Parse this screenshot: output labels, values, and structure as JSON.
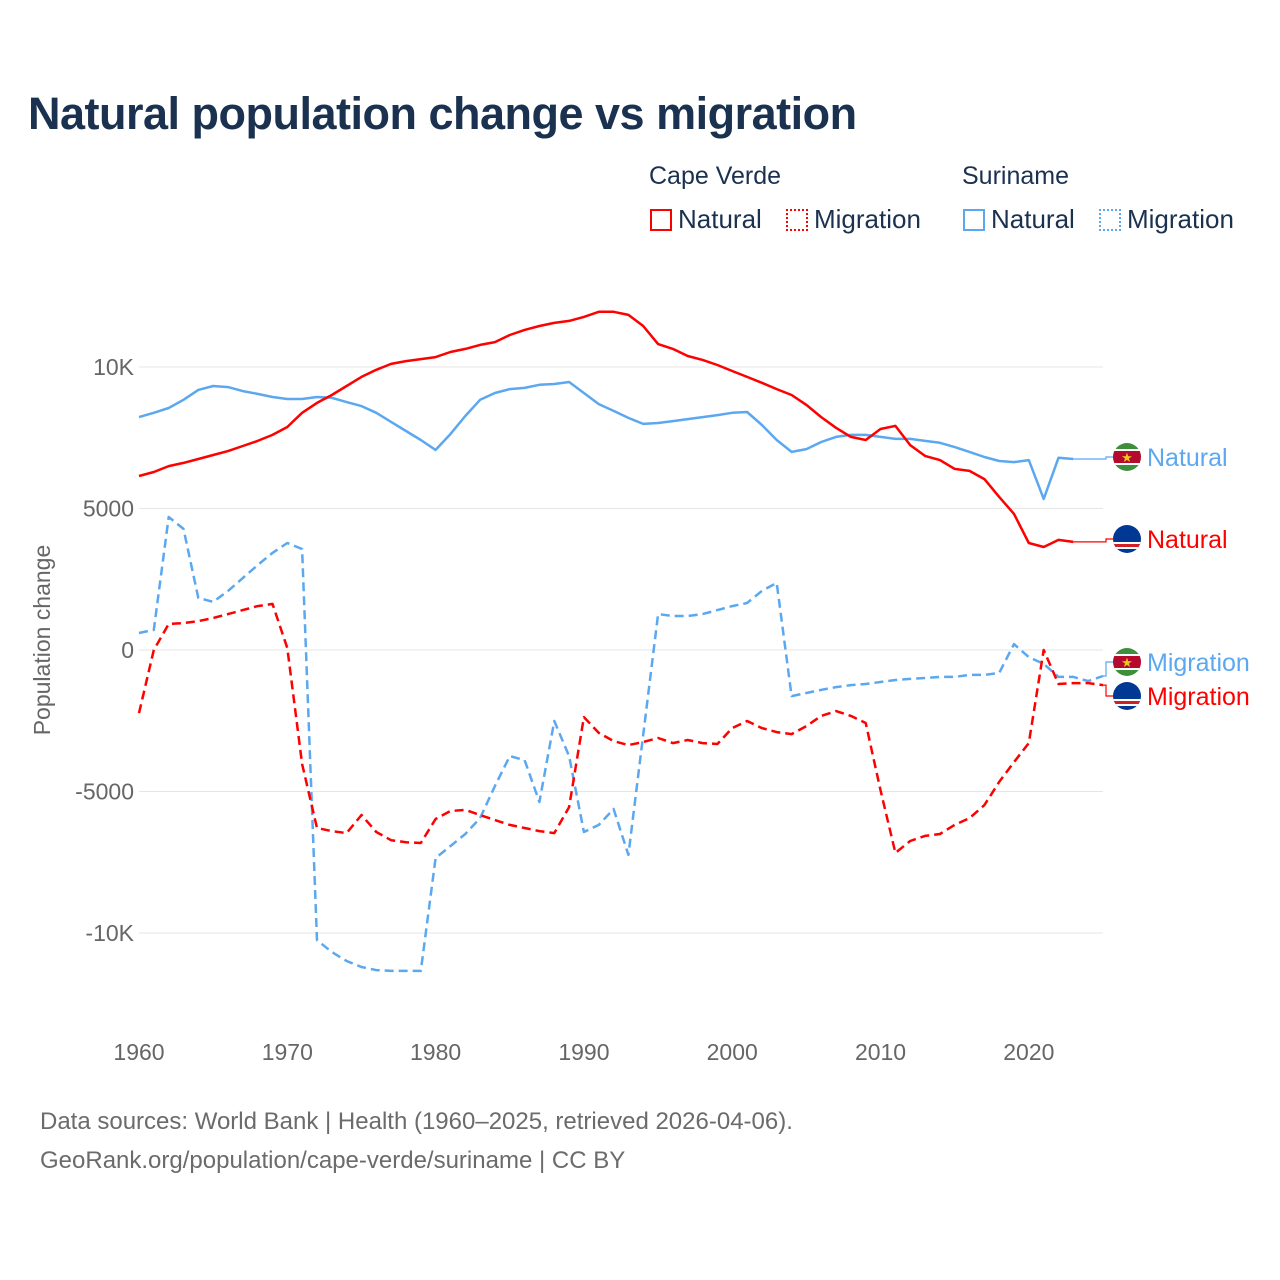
{
  "title": "Natural population change vs migration",
  "legend": {
    "groups": [
      {
        "name": "Cape Verde",
        "items": [
          "Natural",
          "Migration"
        ],
        "color": "#ff0000"
      },
      {
        "name": "Suriname",
        "items": [
          "Natural",
          "Migration"
        ],
        "color": "#5ba8f0"
      }
    ]
  },
  "footer": {
    "line1": "Data sources: World Bank | Health (1960–2025, retrieved 2026-04-06).",
    "line2": "GeoRank.org/population/cape-verde/suriname | CC BY"
  },
  "chart_data": {
    "type": "line",
    "title": "Natural population change vs migration",
    "xlabel": "",
    "ylabel": "Population change",
    "xlim": [
      1960,
      2025
    ],
    "ylim": [
      -12500,
      12500
    ],
    "grid": true,
    "x_ticks": [
      1960,
      1970,
      1980,
      1990,
      2000,
      2010,
      2020
    ],
    "x_tick_labels": [
      "1960",
      "1970",
      "1980",
      "1990",
      "2000",
      "2010",
      "2020"
    ],
    "y_ticks": [
      10000,
      5000,
      0,
      -5000,
      -10000
    ],
    "y_tick_labels": [
      "10K",
      "5000",
      "0",
      "-5000",
      "-10K"
    ],
    "series": [
      {
        "name": "Natural",
        "country": "Cape Verde",
        "color": "#ff0000",
        "dash": false,
        "start": 1960,
        "end_label": "Natural",
        "values": [
          6150,
          6290,
          6500,
          6610,
          6750,
          6890,
          7030,
          7210,
          7390,
          7600,
          7880,
          8380,
          8730,
          9010,
          9330,
          9650,
          9900,
          10110,
          10210,
          10280,
          10350,
          10530,
          10640,
          10780,
          10880,
          11130,
          11310,
          11450,
          11560,
          11630,
          11770,
          11950,
          11950,
          11840,
          11450,
          10810,
          10640,
          10390,
          10250,
          10070,
          9860,
          9650,
          9440,
          9220,
          9010,
          8660,
          8230,
          7850,
          7530,
          7420,
          7810,
          7920,
          7240,
          6860,
          6710,
          6400,
          6330,
          6040,
          5410,
          4810,
          3780,
          3640,
          3890,
          3820
        ]
      },
      {
        "name": "Natural",
        "country": "Suriname",
        "color": "#5ba8f0",
        "dash": false,
        "start": 1960,
        "end_label": "Natural",
        "values": [
          8230,
          8380,
          8550,
          8840,
          9190,
          9330,
          9290,
          9150,
          9050,
          8940,
          8870,
          8870,
          8940,
          8910,
          8760,
          8620,
          8380,
          8060,
          7740,
          7420,
          7070,
          7630,
          8270,
          8840,
          9080,
          9220,
          9260,
          9370,
          9400,
          9470,
          9080,
          8690,
          8450,
          8200,
          7990,
          8020,
          8090,
          8160,
          8230,
          8300,
          8380,
          8410,
          7950,
          7420,
          7000,
          7100,
          7350,
          7530,
          7600,
          7600,
          7530,
          7460,
          7460,
          7390,
          7320,
          7170,
          7000,
          6820,
          6680,
          6640,
          6710,
          5340,
          6790,
          6750
        ]
      },
      {
        "name": "Migration",
        "country": "Cape Verde",
        "color": "#ff0000",
        "dash": true,
        "start": 1960,
        "end_label": "Migration",
        "values": [
          -2230,
          0,
          920,
          950,
          1020,
          1130,
          1270,
          1410,
          1550,
          1630,
          70,
          -4030,
          -6290,
          -6400,
          -6470,
          -5830,
          -6430,
          -6720,
          -6790,
          -6820,
          -5970,
          -5690,
          -5650,
          -5830,
          -6010,
          -6180,
          -6290,
          -6400,
          -6470,
          -5550,
          -2370,
          -2930,
          -3220,
          -3360,
          -3250,
          -3110,
          -3290,
          -3180,
          -3290,
          -3320,
          -2760,
          -2510,
          -2760,
          -2900,
          -2970,
          -2690,
          -2330,
          -2160,
          -2330,
          -2580,
          -4950,
          -7170,
          -6750,
          -6570,
          -6500,
          -6180,
          -5940,
          -5480,
          -4660,
          -3960,
          -3290,
          0,
          -1200,
          -1170,
          -1170,
          -1240
        ]
      },
      {
        "name": "Migration",
        "country": "Suriname",
        "color": "#5ba8f0",
        "dash": true,
        "start": 1960,
        "end_label": "Migration",
        "values": [
          600,
          710,
          4700,
          4280,
          1840,
          1700,
          2090,
          2540,
          3000,
          3430,
          3780,
          3570,
          -10250,
          -10670,
          -10990,
          -11200,
          -11310,
          -11340,
          -11340,
          -11340,
          -7350,
          -6930,
          -6500,
          -5940,
          -4810,
          -3750,
          -3890,
          -5370,
          -2510,
          -3750,
          -6430,
          -6180,
          -5620,
          -7240,
          -3000,
          1270,
          1200,
          1200,
          1270,
          1410,
          1550,
          1660,
          2090,
          2370,
          -1630,
          -1520,
          -1410,
          -1310,
          -1240,
          -1200,
          -1130,
          -1060,
          -1020,
          -990,
          -950,
          -950,
          -880,
          -880,
          -810,
          210,
          -250,
          -490,
          -950,
          -950,
          -1100,
          -920
        ]
      }
    ]
  }
}
